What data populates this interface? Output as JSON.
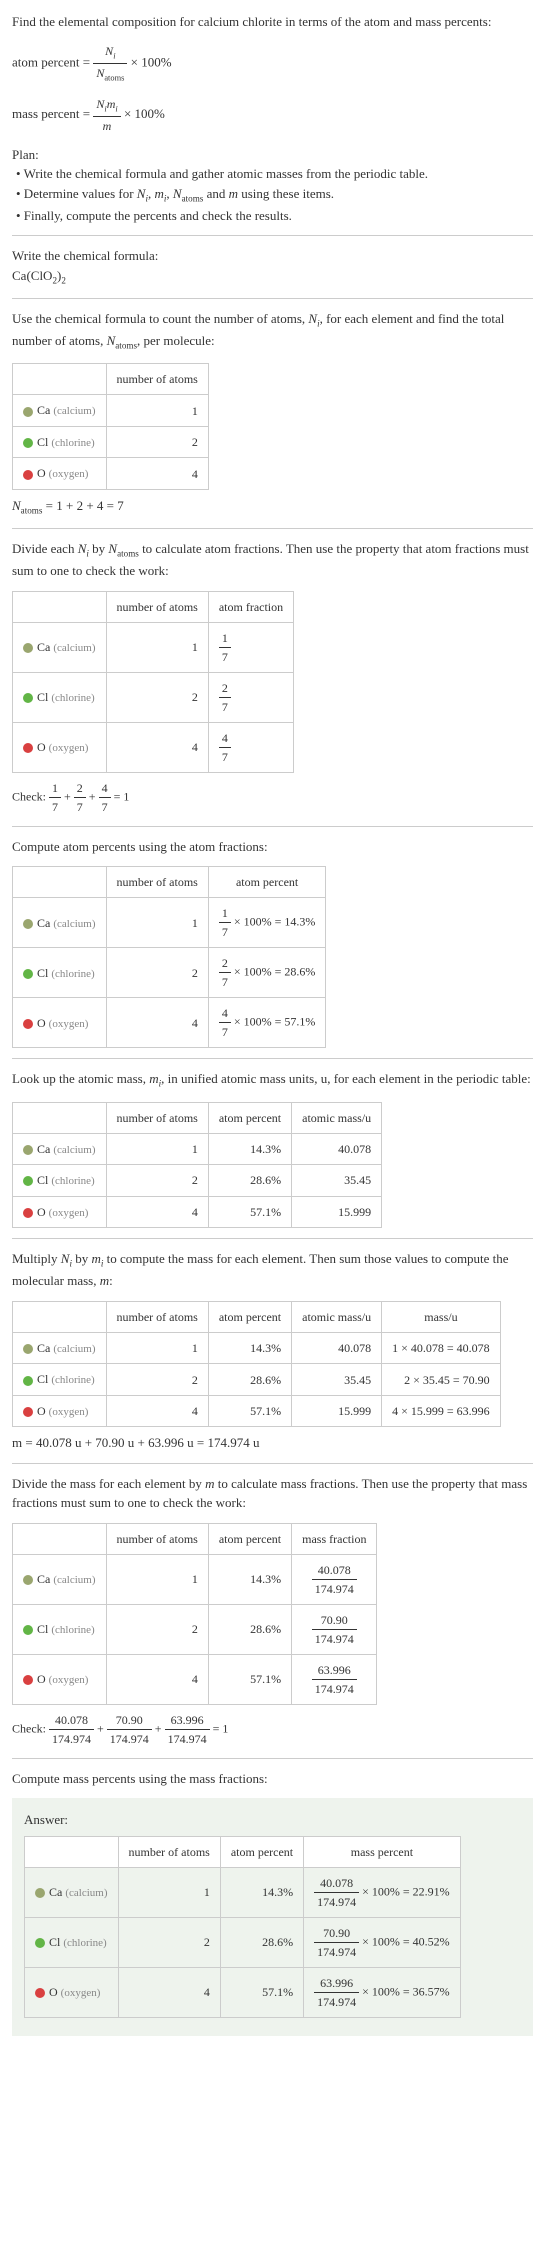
{
  "intro": {
    "line1": "Find the elemental composition for calcium chlorite in terms of the atom and mass percents:",
    "atom_percent_lhs": "atom percent = ",
    "atom_percent_frac_top": "N",
    "atom_percent_frac_top_sub": "i",
    "atom_percent_frac_bot": "N",
    "atom_percent_frac_bot_sub": "atoms",
    "atom_percent_rhs": " × 100%",
    "mass_percent_lhs": "mass percent = ",
    "mass_percent_frac_top": "N",
    "mass_percent_frac_top_sub1": "i",
    "mass_percent_frac_top2": "m",
    "mass_percent_frac_top_sub2": "i",
    "mass_percent_frac_bot": "m",
    "mass_percent_rhs": " × 100%"
  },
  "plan": {
    "title": "Plan:",
    "b1": "• Write the chemical formula and gather atomic masses from the periodic table.",
    "b2_a": "• Determine values for ",
    "b2_b": ", ",
    "b2_c": " and ",
    "b2_d": " using these items.",
    "b3": "• Finally, compute the percents and check the results."
  },
  "chem_formula": {
    "label": "Write the chemical formula:",
    "formula": "Ca(ClO",
    "sub1": "2",
    "mid": ")",
    "sub2": "2"
  },
  "count_intro_a": "Use the chemical formula to count the number of atoms, ",
  "count_intro_b": ", for each element and find the total number of atoms, ",
  "count_intro_c": ", per molecule:",
  "elements": [
    {
      "name": "Ca",
      "paren": "(calcium)",
      "color": "#9aa66f",
      "n": "1",
      "af_top": "1",
      "af_bot": "7",
      "ap": "14.3%",
      "mass_u": "40.078",
      "mass_calc": "1 × 40.078 = 40.078",
      "mass_val": "40.078",
      "mf_top": "40.078",
      "mf_bot": "174.974",
      "mp": "22.91%"
    },
    {
      "name": "Cl",
      "paren": "(chlorine)",
      "color": "#62b546",
      "n": "2",
      "af_top": "2",
      "af_bot": "7",
      "ap": "28.6%",
      "mass_u": "35.45",
      "mass_calc": "2 × 35.45 = 70.90",
      "mass_val": "70.90",
      "mf_top": "70.90",
      "mf_bot": "174.974",
      "mp": "40.52%"
    },
    {
      "name": "O",
      "paren": "(oxygen)",
      "color": "#d94040",
      "n": "4",
      "af_top": "4",
      "af_bot": "7",
      "ap": "57.1%",
      "mass_u": "15.999",
      "mass_calc": "4 × 15.999 = 63.996",
      "mass_val": "63.996",
      "mf_top": "63.996",
      "mf_bot": "174.974",
      "mp": "36.57%"
    }
  ],
  "headers": {
    "num_atoms": "number of atoms",
    "atom_fraction": "atom fraction",
    "atom_percent": "atom percent",
    "atomic_mass": "atomic mass/u",
    "mass_u": "mass/u",
    "mass_fraction": "mass fraction",
    "mass_percent": "mass percent"
  },
  "natoms_eq_a": "N",
  "natoms_eq_sub": "atoms",
  "natoms_eq_b": " = 1 + 2 + 4 = 7",
  "divide_intro_a": "Divide each ",
  "divide_intro_b": " by ",
  "divide_intro_c": " to calculate atom fractions. Then use the property that atom fractions must sum to one to check the work:",
  "check1": "Check: ",
  "check1_eq": " = 1",
  "compute_atom_percents": "Compute atom percents using the atom fractions:",
  "ap_suffix": " × 100% = ",
  "lookup_intro_a": "Look up the atomic mass, ",
  "lookup_intro_b": ", in unified atomic mass units, u, for each element in the periodic table:",
  "multiply_intro_a": "Multiply ",
  "multiply_intro_b": " by ",
  "multiply_intro_c": " to compute the mass for each element. Then sum those values to compute the molecular mass, ",
  "multiply_intro_d": ":",
  "m_eq": "m = 40.078 u + 70.90 u + 63.996 u = 174.974 u",
  "divide_mass_intro": "Divide the mass for each element by ",
  "divide_mass_intro2": " to calculate mass fractions. Then use the property that mass fractions must sum to one to check the work:",
  "check2": "Check: ",
  "check2_eq": " = 1",
  "compute_mass_percents": "Compute mass percents using the mass fractions:",
  "answer_label": "Answer:",
  "mp_suffix": " × 100% = "
}
